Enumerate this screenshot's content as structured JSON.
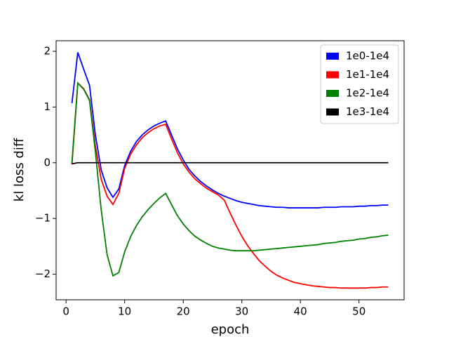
{
  "chart_data": {
    "type": "line",
    "x_label": "epoch",
    "y_label": "kl loss diff",
    "x": [
      1,
      2,
      3,
      4,
      5,
      6,
      7,
      8,
      9,
      10,
      11,
      12,
      13,
      14,
      15,
      16,
      17,
      18,
      19,
      20,
      21,
      22,
      23,
      24,
      25,
      26,
      27,
      28,
      29,
      30,
      31,
      32,
      33,
      34,
      35,
      36,
      37,
      38,
      39,
      40,
      41,
      42,
      43,
      44,
      45,
      46,
      47,
      48,
      49,
      50,
      51,
      52,
      53,
      54,
      55
    ],
    "series": [
      {
        "name": "1e0-1e4",
        "color": "#0000ff",
        "values": [
          1.07,
          1.98,
          1.68,
          1.39,
          0.5,
          -0.13,
          -0.45,
          -0.62,
          -0.47,
          -0.05,
          0.2,
          0.38,
          0.5,
          0.59,
          0.66,
          0.71,
          0.75,
          0.5,
          0.25,
          0.05,
          -0.12,
          -0.24,
          -0.34,
          -0.42,
          -0.49,
          -0.55,
          -0.6,
          -0.64,
          -0.68,
          -0.71,
          -0.73,
          -0.75,
          -0.77,
          -0.78,
          -0.79,
          -0.8,
          -0.8,
          -0.81,
          -0.81,
          -0.81,
          -0.81,
          -0.81,
          -0.81,
          -0.8,
          -0.8,
          -0.8,
          -0.79,
          -0.79,
          -0.79,
          -0.78,
          -0.78,
          -0.77,
          -0.77,
          -0.76,
          -0.76
        ]
      },
      {
        "name": "1e1-1e4",
        "color": "#ff0000",
        "values": [
          -0.03,
          1.43,
          1.33,
          1.13,
          0.3,
          -0.3,
          -0.6,
          -0.75,
          -0.55,
          -0.1,
          0.15,
          0.32,
          0.45,
          0.54,
          0.61,
          0.66,
          0.69,
          0.43,
          0.18,
          -0.02,
          -0.17,
          -0.29,
          -0.38,
          -0.46,
          -0.52,
          -0.58,
          -0.67,
          -0.9,
          -1.12,
          -1.32,
          -1.49,
          -1.63,
          -1.76,
          -1.86,
          -1.95,
          -2.02,
          -2.07,
          -2.11,
          -2.15,
          -2.17,
          -2.19,
          -2.21,
          -2.22,
          -2.23,
          -2.24,
          -2.24,
          -2.25,
          -2.25,
          -2.25,
          -2.25,
          -2.25,
          -2.24,
          -2.24,
          -2.23,
          -2.23
        ]
      },
      {
        "name": "1e2-1e4",
        "color": "#008000",
        "values": [
          0.0,
          1.43,
          1.32,
          1.12,
          0.2,
          -0.85,
          -1.65,
          -2.03,
          -1.97,
          -1.6,
          -1.33,
          -1.13,
          -0.97,
          -0.84,
          -0.73,
          -0.63,
          -0.55,
          -0.75,
          -0.95,
          -1.1,
          -1.22,
          -1.32,
          -1.39,
          -1.45,
          -1.5,
          -1.53,
          -1.55,
          -1.57,
          -1.58,
          -1.58,
          -1.58,
          -1.58,
          -1.57,
          -1.56,
          -1.55,
          -1.54,
          -1.53,
          -1.52,
          -1.51,
          -1.5,
          -1.49,
          -1.48,
          -1.47,
          -1.45,
          -1.44,
          -1.43,
          -1.41,
          -1.4,
          -1.39,
          -1.37,
          -1.36,
          -1.34,
          -1.33,
          -1.31,
          -1.3
        ]
      },
      {
        "name": "1e3-1e4",
        "color": "#000000",
        "values": [
          -0.02,
          0,
          0,
          0,
          0,
          0,
          0,
          0,
          0,
          0,
          0,
          0,
          0,
          0,
          0,
          0,
          0,
          0,
          0,
          0,
          0,
          0,
          0,
          0,
          0,
          0,
          0,
          0,
          0,
          0,
          0,
          0,
          0,
          0,
          0,
          0,
          0,
          0,
          0,
          0,
          0,
          0,
          0,
          0,
          0,
          0,
          0,
          0,
          0,
          0,
          0,
          0,
          0,
          0,
          0
        ]
      }
    ],
    "xlim": [
      -1.7,
      57.7
    ],
    "ylim": [
      -2.46,
      2.19
    ],
    "xticks": [
      0,
      10,
      20,
      30,
      40,
      50
    ],
    "yticks": [
      {
        "value": -2,
        "label": "−2"
      },
      {
        "value": -1,
        "label": "−1"
      },
      0,
      1,
      2
    ],
    "legend": "upper right",
    "grid": false
  }
}
